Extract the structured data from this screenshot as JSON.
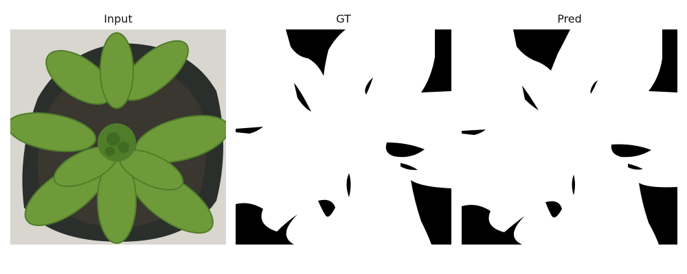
{
  "panels": [
    {
      "title": "Input",
      "kind": "rgb-photo"
    },
    {
      "title": "GT",
      "kind": "binary-mask"
    },
    {
      "title": "Pred",
      "kind": "binary-mask"
    }
  ],
  "colors": {
    "background": "#ffffff",
    "mask_foreground": "#ffffff",
    "mask_background": "#000000",
    "leaf_green": "#6f9a3a",
    "leaf_dark": "#3f6a22",
    "pot_dark": "#2b2f2c",
    "soil": "#3a3630",
    "floor": "#d9d6cf"
  }
}
